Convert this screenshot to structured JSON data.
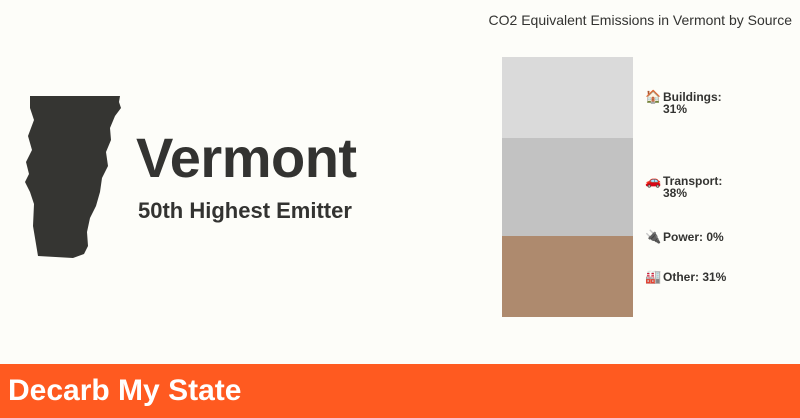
{
  "header": {
    "state_name": "Vermont",
    "rank_label": "50th Highest Emitter"
  },
  "chart_data": {
    "type": "bar",
    "title": "CO2 Equivalent Emissions in Vermont by Source",
    "categories": [
      "Buildings",
      "Transport",
      "Power",
      "Other"
    ],
    "values": [
      31,
      38,
      0,
      31
    ],
    "unit": "%",
    "labels": [
      "Buildings: 31%",
      "Transport: 38%",
      "Power: 0%",
      "Other: 31%"
    ],
    "icons": [
      "house-icon",
      "car-icon",
      "plug-icon",
      "factory-icon"
    ],
    "colors": [
      "#dadada",
      "#c2c2c2",
      "#c4c4c4",
      "#ae8a6e"
    ]
  },
  "footer": {
    "brand": "Decarb My State",
    "color": "#ff5a20"
  }
}
